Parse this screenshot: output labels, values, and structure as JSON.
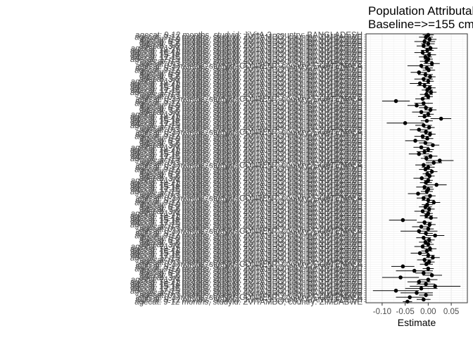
{
  "chart_data": {
    "type": "forest-plot",
    "title_lines": [
      "Population Attributable Fraction",
      "Baseline=>=155 cm"
    ],
    "xlabel": "Estimate",
    "ylabel": "",
    "xlim": [
      -0.135,
      0.085
    ],
    "xticks": [
      -0.1,
      -0.05,
      0.0,
      0.05
    ],
    "xtick_labels": [
      "-0.10",
      "-0.05",
      "0.00",
      "0.05"
    ],
    "grid": true,
    "visible_row_labels": [
      "agecat: 9-12 months, studyid: JiVitA-3, country: BANGLADESH",
      "agecat: 9-12 months, studyid: ZVITAMBO, country: ZIMBABWE",
      "agecat: 6-9 months, studyid: JiVitA-3, country: BANGLADESH",
      "agecat: 6-9 months, studyid: ZVITAMBO, country: ZIMBABWE",
      "agecat: 3-6 months, studyid: JiVitA-3, country: BANGLADESH",
      "agecat: 3-6 months, studyid: ZVITAMBO, country: ZIMBABWE",
      "agecat: 21-24 months, studyid: JiVitA-3, country: BANGLADESH",
      "agecat: 18-21 months, studyid: ZVITAMBO, country: ZIMBABWE",
      "agecat: 15-18 months, studyid: JiVitA-3, country: BANGLADESH",
      "agecat: 15-18 months, studyid: ZVITAMBO, country: ZIMBABWE",
      "agecat: 12-15 months, studyid: JiVitA-3, country: BANGLADESH",
      "agecat: 12-15 months, studyid: ZVITAMBO, country: ZIMBABWE",
      "agecat: 0-3 months, studyid: JiVitA-3, country: BANGLADESH",
      "agecat: 0-3 months, studyid: ZVITAMBO, country: ZIMBABWE",
      "agecat: 0-3 months, studyid: CONTENT, country: GUATEMALA"
    ],
    "points": [
      {
        "est": 0.0,
        "lo": -0.012,
        "hi": 0.012
      },
      {
        "est": -0.005,
        "lo": -0.02,
        "hi": 0.01
      },
      {
        "est": 0.003,
        "lo": -0.01,
        "hi": 0.018
      },
      {
        "est": -0.008,
        "lo": -0.03,
        "hi": 0.015
      },
      {
        "est": 0.0,
        "lo": -0.015,
        "hi": 0.014
      },
      {
        "est": -0.01,
        "lo": -0.025,
        "hi": 0.005
      },
      {
        "est": 0.005,
        "lo": -0.008,
        "hi": 0.02
      },
      {
        "est": -0.002,
        "lo": -0.016,
        "hi": 0.012
      },
      {
        "est": -0.012,
        "lo": -0.03,
        "hi": 0.006
      },
      {
        "est": 0.002,
        "lo": -0.012,
        "hi": 0.017
      },
      {
        "est": -0.006,
        "lo": -0.02,
        "hi": 0.008
      },
      {
        "est": 0.0,
        "lo": -0.01,
        "hi": 0.01
      },
      {
        "est": -0.004,
        "lo": -0.018,
        "hi": 0.01
      },
      {
        "est": 0.008,
        "lo": -0.01,
        "hi": 0.025
      },
      {
        "est": -0.015,
        "lo": -0.045,
        "hi": 0.012
      },
      {
        "est": -0.003,
        "lo": -0.015,
        "hi": 0.01
      },
      {
        "est": 0.001,
        "lo": -0.012,
        "hi": 0.015
      },
      {
        "est": -0.02,
        "lo": -0.038,
        "hi": -0.002
      },
      {
        "est": -0.006,
        "lo": -0.022,
        "hi": 0.01
      },
      {
        "est": 0.004,
        "lo": -0.008,
        "hi": 0.016
      },
      {
        "est": -0.01,
        "lo": -0.03,
        "hi": 0.01
      },
      {
        "est": 0.0,
        "lo": -0.012,
        "hi": 0.012
      },
      {
        "est": -0.018,
        "lo": -0.04,
        "hi": 0.004
      },
      {
        "est": -0.008,
        "lo": -0.024,
        "hi": 0.008
      },
      {
        "est": 0.003,
        "lo": -0.01,
        "hi": 0.016
      },
      {
        "est": -0.002,
        "lo": -0.014,
        "hi": 0.01
      },
      {
        "est": 0.006,
        "lo": -0.006,
        "hi": 0.018
      },
      {
        "est": -0.004,
        "lo": -0.018,
        "hi": 0.01
      },
      {
        "est": 0.0,
        "lo": -0.01,
        "hi": 0.01
      },
      {
        "est": -0.012,
        "lo": -0.028,
        "hi": 0.004
      },
      {
        "est": -0.07,
        "lo": -0.1,
        "hi": -0.04
      },
      {
        "est": -0.01,
        "lo": -0.03,
        "hi": 0.01
      },
      {
        "est": -0.025,
        "lo": -0.045,
        "hi": -0.005
      },
      {
        "est": -0.005,
        "lo": -0.02,
        "hi": 0.01
      },
      {
        "est": 0.005,
        "lo": -0.008,
        "hi": 0.018
      },
      {
        "est": -0.015,
        "lo": -0.035,
        "hi": 0.005
      },
      {
        "est": 0.0,
        "lo": -0.012,
        "hi": 0.012
      },
      {
        "est": -0.008,
        "lo": -0.022,
        "hi": 0.006
      },
      {
        "est": 0.028,
        "lo": 0.005,
        "hi": 0.05
      },
      {
        "est": -0.003,
        "lo": -0.016,
        "hi": 0.01
      },
      {
        "est": -0.05,
        "lo": -0.09,
        "hi": -0.01
      },
      {
        "est": -0.01,
        "lo": -0.028,
        "hi": 0.008
      },
      {
        "est": 0.002,
        "lo": -0.01,
        "hi": 0.014
      },
      {
        "est": -0.02,
        "lo": -0.04,
        "hi": 0.0
      },
      {
        "est": -0.005,
        "lo": -0.018,
        "hi": 0.008
      },
      {
        "est": 0.004,
        "lo": -0.008,
        "hi": 0.016
      },
      {
        "est": -0.012,
        "lo": -0.03,
        "hi": 0.006
      },
      {
        "est": -0.002,
        "lo": -0.015,
        "hi": 0.011
      },
      {
        "est": -0.028,
        "lo": -0.05,
        "hi": -0.006
      },
      {
        "est": -0.006,
        "lo": -0.02,
        "hi": 0.008
      },
      {
        "est": 0.01,
        "lo": -0.004,
        "hi": 0.024
      },
      {
        "est": -0.015,
        "lo": -0.032,
        "hi": 0.002
      },
      {
        "est": 0.0,
        "lo": -0.012,
        "hi": 0.012
      },
      {
        "est": -0.008,
        "lo": -0.025,
        "hi": 0.009
      },
      {
        "est": -0.02,
        "lo": -0.042,
        "hi": 0.002
      },
      {
        "est": 0.005,
        "lo": -0.01,
        "hi": 0.02
      },
      {
        "est": -0.004,
        "lo": -0.016,
        "hi": 0.008
      },
      {
        "est": 0.025,
        "lo": -0.005,
        "hi": 0.055
      },
      {
        "est": 0.012,
        "lo": -0.005,
        "hi": 0.03
      },
      {
        "est": -0.01,
        "lo": -0.028,
        "hi": 0.008
      },
      {
        "est": 0.0,
        "lo": -0.014,
        "hi": 0.014
      },
      {
        "est": -0.006,
        "lo": -0.02,
        "hi": 0.008
      },
      {
        "est": 0.008,
        "lo": -0.004,
        "hi": 0.02
      },
      {
        "est": -0.002,
        "lo": -0.012,
        "hi": 0.008
      },
      {
        "est": 0.003,
        "lo": -0.008,
        "hi": 0.014
      },
      {
        "est": -0.014,
        "lo": -0.032,
        "hi": 0.004
      },
      {
        "est": 0.0,
        "lo": -0.01,
        "hi": 0.01
      },
      {
        "est": -0.005,
        "lo": -0.018,
        "hi": 0.008
      },
      {
        "est": 0.018,
        "lo": -0.004,
        "hi": 0.04
      },
      {
        "est": -0.008,
        "lo": -0.026,
        "hi": 0.01
      },
      {
        "est": 0.0,
        "lo": -0.012,
        "hi": 0.012
      },
      {
        "est": -0.003,
        "lo": -0.016,
        "hi": 0.01
      },
      {
        "est": -0.022,
        "lo": -0.044,
        "hi": 0.0
      },
      {
        "est": 0.004,
        "lo": -0.008,
        "hi": 0.016
      },
      {
        "est": -0.01,
        "lo": -0.025,
        "hi": 0.005
      },
      {
        "est": 0.0,
        "lo": -0.014,
        "hi": 0.014
      },
      {
        "est": 0.012,
        "lo": -0.002,
        "hi": 0.026
      },
      {
        "est": -0.002,
        "lo": -0.014,
        "hi": 0.01
      },
      {
        "est": -0.006,
        "lo": -0.02,
        "hi": 0.008
      },
      {
        "est": 0.002,
        "lo": -0.01,
        "hi": 0.014
      },
      {
        "est": -0.012,
        "lo": -0.03,
        "hi": 0.006
      },
      {
        "est": 0.0,
        "lo": -0.01,
        "hi": 0.01
      },
      {
        "est": -0.004,
        "lo": -0.018,
        "hi": 0.01
      },
      {
        "est": 0.006,
        "lo": -0.008,
        "hi": 0.02
      },
      {
        "est": -0.055,
        "lo": -0.085,
        "hi": -0.025
      },
      {
        "est": -0.008,
        "lo": -0.024,
        "hi": 0.008
      },
      {
        "est": 0.003,
        "lo": -0.01,
        "hi": 0.016
      },
      {
        "est": -0.015,
        "lo": -0.035,
        "hi": 0.005
      },
      {
        "est": 0.0,
        "lo": -0.012,
        "hi": 0.012
      },
      {
        "est": -0.02,
        "lo": -0.06,
        "hi": 0.02
      },
      {
        "est": -0.005,
        "lo": -0.02,
        "hi": 0.01
      },
      {
        "est": 0.015,
        "lo": -0.005,
        "hi": 0.035
      },
      {
        "est": -0.01,
        "lo": -0.026,
        "hi": 0.006
      },
      {
        "est": 0.002,
        "lo": -0.01,
        "hi": 0.014
      },
      {
        "est": -0.006,
        "lo": -0.02,
        "hi": 0.008
      },
      {
        "est": 0.0,
        "lo": -0.012,
        "hi": 0.012
      },
      {
        "est": -0.012,
        "lo": -0.03,
        "hi": 0.006
      },
      {
        "est": 0.004,
        "lo": -0.01,
        "hi": 0.018
      },
      {
        "est": -0.003,
        "lo": -0.015,
        "hi": 0.009
      },
      {
        "est": -0.018,
        "lo": -0.038,
        "hi": 0.002
      },
      {
        "est": 0.0,
        "lo": -0.014,
        "hi": 0.014
      },
      {
        "est": 0.01,
        "lo": -0.005,
        "hi": 0.025
      },
      {
        "est": -0.008,
        "lo": -0.024,
        "hi": 0.008
      },
      {
        "est": 0.002,
        "lo": -0.01,
        "hi": 0.014
      },
      {
        "est": -0.004,
        "lo": -0.018,
        "hi": 0.01
      },
      {
        "est": -0.055,
        "lo": -0.08,
        "hi": -0.03
      },
      {
        "est": 0.0,
        "lo": -0.012,
        "hi": 0.012
      },
      {
        "est": -0.03,
        "lo": -0.07,
        "hi": 0.01
      },
      {
        "est": -0.01,
        "lo": -0.028,
        "hi": 0.008
      },
      {
        "est": 0.008,
        "lo": -0.012,
        "hi": 0.03
      },
      {
        "est": -0.06,
        "lo": -0.1,
        "hi": -0.02
      },
      {
        "est": 0.0,
        "lo": -0.02,
        "hi": 0.02
      },
      {
        "est": -0.02,
        "lo": -0.045,
        "hi": 0.005
      },
      {
        "est": -0.005,
        "lo": -0.025,
        "hi": 0.015
      },
      {
        "est": 0.015,
        "lo": -0.04,
        "hi": 0.07
      },
      {
        "est": -0.015,
        "lo": -0.05,
        "hi": 0.02
      },
      {
        "est": -0.07,
        "lo": -0.12,
        "hi": -0.02
      },
      {
        "est": -0.025,
        "lo": -0.06,
        "hi": 0.01
      },
      {
        "est": -0.005,
        "lo": -0.02,
        "hi": 0.01
      },
      {
        "est": -0.04,
        "lo": -0.07,
        "hi": -0.01
      },
      {
        "est": -0.01,
        "lo": -0.025,
        "hi": 0.005
      },
      {
        "est": -0.045,
        "lo": -0.055,
        "hi": -0.035
      }
    ]
  }
}
